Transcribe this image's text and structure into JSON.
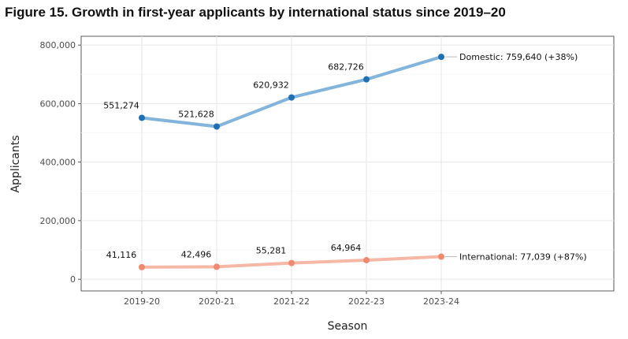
{
  "figure_title": "Figure 15. Growth in first-year applicants by international status since 2019–20",
  "chart_data": {
    "type": "line",
    "title": "",
    "xlabel": "Season",
    "ylabel": "Applicants",
    "categories": [
      "2019-20",
      "2020-21",
      "2021-22",
      "2022-23",
      "2023-24"
    ],
    "ylim": [
      -40000,
      830000
    ],
    "yticks": [
      0,
      200000,
      400000,
      600000,
      800000
    ],
    "ytick_labels": [
      "0",
      "200,000",
      "400,000",
      "600,000",
      "800,000"
    ],
    "grid": true,
    "legend": "none",
    "series": [
      {
        "name": "Domestic",
        "values": [
          551274,
          521628,
          620932,
          682726,
          759640
        ],
        "value_labels": [
          "551,274",
          "521,628",
          "620,932",
          "682,726",
          ""
        ],
        "end_label": "Domestic: 759,640 (+38%)",
        "line_color": "#82b4dc",
        "point_color": "#1f6fb4"
      },
      {
        "name": "International",
        "values": [
          41116,
          42496,
          55281,
          64964,
          77039
        ],
        "value_labels": [
          "41,116",
          "42,496",
          "55,281",
          "64,964",
          ""
        ],
        "end_label": "International: 77,039 (+87%)",
        "line_color": "#f5b7a6",
        "point_color": "#ef8a6f"
      }
    ]
  }
}
